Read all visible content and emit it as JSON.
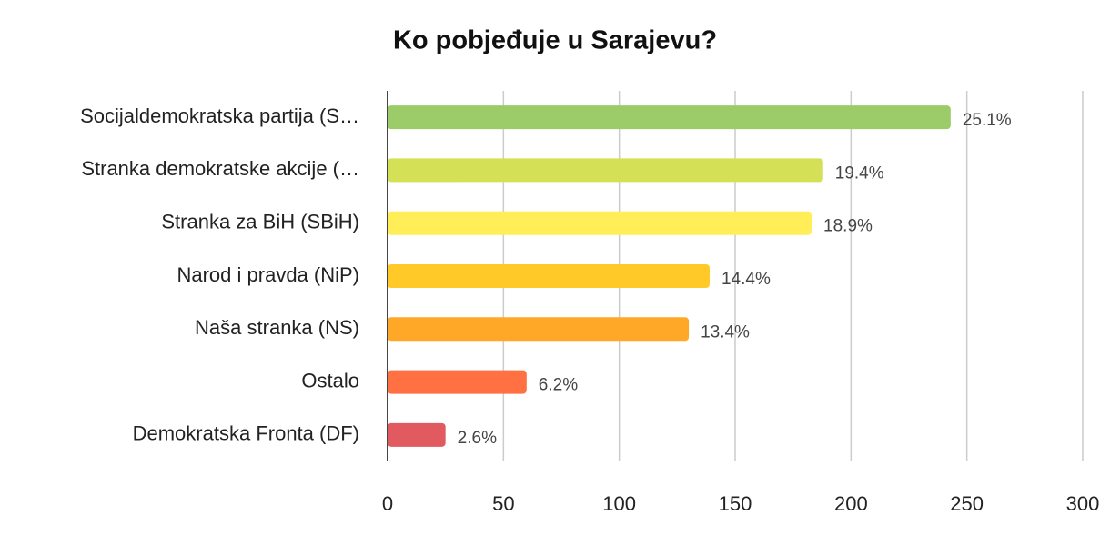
{
  "chart_data": {
    "type": "bar",
    "orientation": "horizontal",
    "title": "Ko pobjeđuje u Sarajevu?",
    "categories": [
      "Socijaldemokratska partija (S…",
      "Stranka demokratske akcije (…",
      "Stranka za BiH (SBiH)",
      "Narod i pravda (NiP)",
      "Naša stranka (NS)",
      "Ostalo",
      "Demokratska Fronta (DF)"
    ],
    "values": [
      243,
      188,
      183,
      139,
      130,
      60,
      25
    ],
    "value_labels": [
      "25.1%",
      "19.4%",
      "18.9%",
      "14.4%",
      "13.4%",
      "6.2%",
      "2.6%"
    ],
    "colors": [
      "#9ccc6a",
      "#d4e157",
      "#ffee58",
      "#ffca28",
      "#ffa726",
      "#ff7043",
      "#e05a5f"
    ],
    "xlim": [
      0,
      300
    ],
    "xticks": [
      0,
      50,
      100,
      150,
      200,
      250,
      300
    ],
    "grid": true
  }
}
